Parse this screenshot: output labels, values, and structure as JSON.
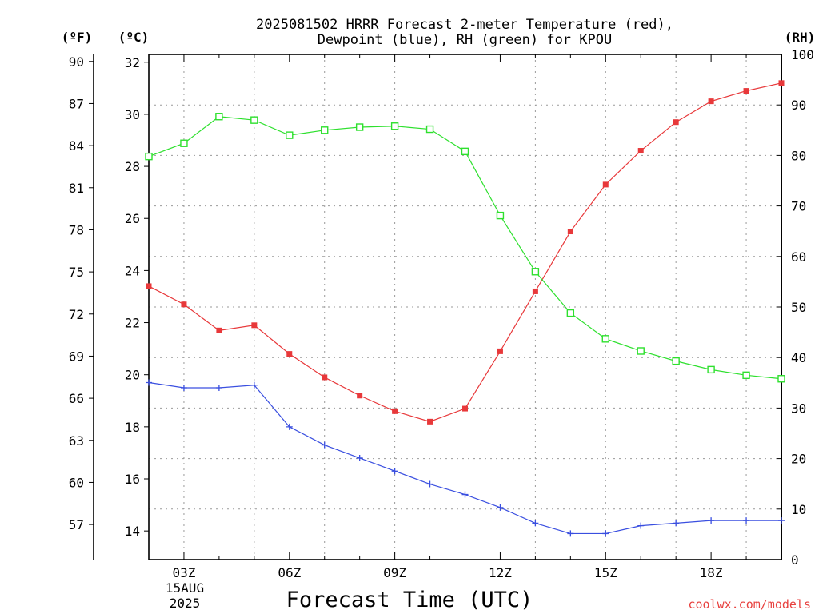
{
  "chart_data": {
    "type": "line",
    "title_lines": [
      "2025081502 HRRR Forecast 2-meter Temperature (red),",
      "Dewpoint (blue), RH (green) for KPOU"
    ],
    "xlabel": "Forecast Time (UTC)",
    "credit": "coolwx.com/models",
    "date_label": [
      "15AUG",
      "2025"
    ],
    "axes": {
      "left_outer": {
        "unit": "(ºF)",
        "range": [
          54.5,
          90.5
        ],
        "ticks": [
          57,
          60,
          63,
          66,
          69,
          72,
          75,
          78,
          81,
          84,
          87,
          90
        ]
      },
      "left_inner": {
        "unit": "(ºC)",
        "range": [
          12.9,
          32.3
        ],
        "ticks": [
          14,
          16,
          18,
          20,
          22,
          24,
          26,
          28,
          30,
          32
        ]
      },
      "right": {
        "unit": "(RH)",
        "range": [
          0,
          100
        ],
        "ticks": [
          0,
          10,
          20,
          30,
          40,
          50,
          60,
          70,
          80,
          90,
          100
        ]
      }
    },
    "x": [
      "02Z",
      "03Z",
      "04Z",
      "05Z",
      "06Z",
      "07Z",
      "08Z",
      "09Z",
      "10Z",
      "11Z",
      "12Z",
      "13Z",
      "14Z",
      "15Z",
      "16Z",
      "17Z",
      "18Z",
      "19Z",
      "20Z"
    ],
    "x_tick_labels": [
      {
        "hour": 3,
        "label": "03Z"
      },
      {
        "hour": 6,
        "label": "06Z"
      },
      {
        "hour": 9,
        "label": "09Z"
      },
      {
        "hour": 12,
        "label": "12Z"
      },
      {
        "hour": 15,
        "label": "15Z"
      },
      {
        "hour": 18,
        "label": "18Z"
      }
    ],
    "x_range_hours": [
      2,
      20
    ],
    "grid": true,
    "series": [
      {
        "name": "Temperature (red)",
        "axis": "left_inner",
        "color": "#e8383a",
        "marker": "filled-square",
        "values": [
          23.4,
          22.7,
          21.7,
          21.9,
          20.8,
          19.9,
          19.2,
          18.6,
          18.2,
          18.7,
          20.9,
          23.2,
          25.5,
          27.3,
          28.6,
          29.7,
          30.5,
          30.9,
          31.2
        ]
      },
      {
        "name": "Dewpoint (blue)",
        "axis": "left_inner",
        "color": "#3a4fe0",
        "marker": "plus",
        "values": [
          19.7,
          19.5,
          19.5,
          19.6,
          18.0,
          17.3,
          16.8,
          16.3,
          15.8,
          15.4,
          14.9,
          14.3,
          13.9,
          13.9,
          14.2,
          14.3,
          14.4,
          14.4,
          14.4
        ]
      },
      {
        "name": "RH (green)",
        "axis": "right",
        "color": "#2ee02e",
        "marker": "open-square",
        "values": [
          79.8,
          82.4,
          87.7,
          87.0,
          84.0,
          85.0,
          85.6,
          85.8,
          85.2,
          80.8,
          68.1,
          57.0,
          48.8,
          43.7,
          41.3,
          39.3,
          37.6,
          36.5,
          35.8
        ]
      }
    ]
  }
}
